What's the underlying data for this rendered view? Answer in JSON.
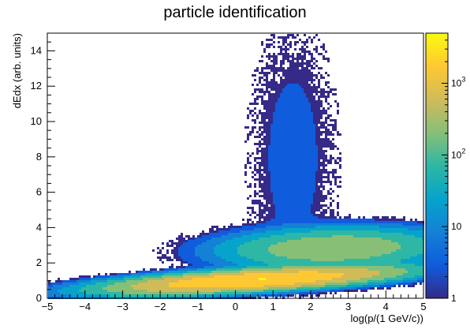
{
  "chart_data": {
    "type": "heatmap",
    "title": "particle identification",
    "xlabel": "log(p/(1 GeV/c))",
    "ylabel": "dEdx (arb. units)",
    "xlim": [
      -5,
      5
    ],
    "ylim": [
      0,
      15
    ],
    "x_ticks": [
      -5,
      -4,
      -3,
      -2,
      -1,
      0,
      1,
      2,
      3,
      4,
      5
    ],
    "y_ticks": [
      0,
      2,
      4,
      6,
      8,
      10,
      12,
      14
    ],
    "log_color_scale": true,
    "color_range": [
      1,
      5000
    ],
    "color_ticks": [
      {
        "value": 1,
        "base": "1",
        "exp": ""
      },
      {
        "value": 10,
        "base": "10",
        "exp": ""
      },
      {
        "value": 100,
        "base": "10",
        "exp": "2"
      },
      {
        "value": 1000,
        "base": "10",
        "exp": "3"
      }
    ],
    "palette": [
      "#352a87",
      "#0f5cdd",
      "#1481d6",
      "#06a4ca",
      "#2eb7a4",
      "#87bf77",
      "#d1bb59",
      "#fec832",
      "#f9fb0e"
    ],
    "clusters": [
      {
        "name": "",
        "x_center": 0.5,
        "x_spread": 1.6,
        "y_center": 1.1,
        "y_slope": 0.12,
        "y_spread": 0.25,
        "peak_count": 3000
      },
      {
        "name": "",
        "x_center": 2.6,
        "x_spread": 1.3,
        "y_center": 2.9,
        "y_slope": 0.05,
        "y_spread": 0.5,
        "peak_count": 300
      },
      {
        "name": "",
        "x_center": 1.5,
        "x_spread": 0.6,
        "y_center": 8.0,
        "y_slope": 0.0,
        "y_spread": 4.0,
        "peak_count": 3
      }
    ]
  }
}
